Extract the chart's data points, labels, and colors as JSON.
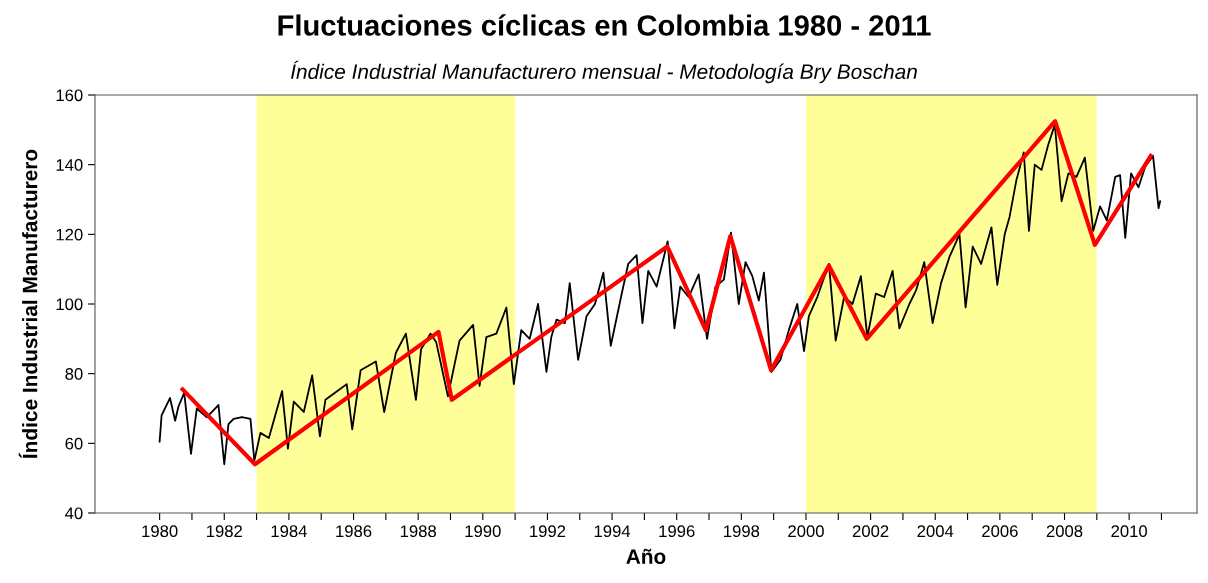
{
  "chart_data": {
    "type": "line",
    "title": "Fluctuaciones cíclicas en Colombia 1980 - 2011",
    "subtitle": "Índice Industrial Manufacturero mensual - Metodología Bry Boschan",
    "xlabel": "Año",
    "ylabel": "Índice Industrial Manufacturero",
    "xlim": [
      1978,
      2012.1
    ],
    "ylim": [
      40,
      160
    ],
    "xticks": [
      1980,
      {
        "value": 1981,
        "label": null
      },
      1982,
      {
        "value": 1983,
        "label": null
      },
      1984,
      {
        "value": 1985,
        "label": null
      },
      1986,
      {
        "value": 1987,
        "label": null
      },
      1988,
      {
        "value": 1989,
        "label": null
      },
      1990,
      {
        "value": 1991,
        "label": null
      },
      1992,
      {
        "value": 1993,
        "label": null
      },
      1994,
      {
        "value": 1995,
        "label": null
      },
      1996,
      {
        "value": 1997,
        "label": null
      },
      1998,
      {
        "value": 1999,
        "label": null
      },
      2000,
      {
        "value": 2001,
        "label": null
      },
      2002,
      {
        "value": 2003,
        "label": null
      },
      2004,
      {
        "value": 2005,
        "label": null
      },
      2006,
      {
        "value": 2007,
        "label": null
      },
      2008,
      {
        "value": 2009,
        "label": null
      },
      2010,
      {
        "value": 2011,
        "label": null
      }
    ],
    "yticks": [
      40,
      60,
      80,
      100,
      120,
      140,
      160
    ],
    "grid": false,
    "marker": "none",
    "bands": [
      {
        "axis": "x",
        "from": 1983.0,
        "to": 1991.0,
        "color": "#ffff99"
      },
      {
        "axis": "x",
        "from": 2000.0,
        "to": 2009.0,
        "color": "#ffff99"
      }
    ],
    "series": [
      {
        "color": "#000000",
        "line_style": "solid",
        "x": [
          1980.0,
          1980.06,
          1980.32,
          1980.48,
          1980.58,
          1980.76,
          1980.97,
          1981.15,
          1981.46,
          1981.82,
          1982.0,
          1982.13,
          1982.29,
          1982.55,
          1982.81,
          1982.93,
          1983.12,
          1983.38,
          1983.79,
          1983.97,
          1984.15,
          1984.46,
          1984.72,
          1984.96,
          1985.13,
          1985.5,
          1985.79,
          1985.96,
          1986.22,
          1986.69,
          1986.95,
          1987.31,
          1987.62,
          1987.93,
          1988.09,
          1988.38,
          1988.56,
          1988.92,
          1989.28,
          1989.7,
          1989.9,
          1990.11,
          1990.42,
          1990.73,
          1990.96,
          1991.19,
          1991.45,
          1991.71,
          1991.97,
          1992.12,
          1992.28,
          1992.54,
          1992.69,
          1992.95,
          1993.21,
          1993.47,
          1993.73,
          1993.96,
          1994.3,
          1994.5,
          1994.76,
          1994.94,
          1995.12,
          1995.38,
          1995.72,
          1995.93,
          1996.11,
          1996.37,
          1996.68,
          1996.94,
          1997.2,
          1997.46,
          1997.68,
          1997.92,
          1998.13,
          1998.34,
          1998.54,
          1998.7,
          1998.93,
          1999.21,
          1999.47,
          1999.73,
          1999.94,
          2000.09,
          2000.35,
          2000.71,
          2000.92,
          2001.18,
          2001.44,
          2001.7,
          2001.9,
          2002.16,
          2002.42,
          2002.68,
          2002.89,
          2003.2,
          2003.41,
          2003.66,
          2003.92,
          2004.18,
          2004.44,
          2004.75,
          2004.94,
          2005.16,
          2005.42,
          2005.74,
          2005.92,
          2006.15,
          2006.3,
          2006.51,
          2006.74,
          2006.9,
          2007.08,
          2007.29,
          2007.49,
          2007.7,
          2007.91,
          2008.12,
          2008.37,
          2008.63,
          2008.89,
          2009.1,
          2009.31,
          2009.57,
          2009.72,
          2009.88,
          2010.06,
          2010.29,
          2010.5,
          2010.74,
          2010.91,
          2010.96
        ],
        "values": [
          60.5,
          68,
          73,
          66.5,
          70.5,
          74.5,
          57,
          70,
          67.5,
          71,
          54,
          65.5,
          67,
          67.5,
          67,
          55,
          63,
          61.5,
          75,
          58.5,
          72,
          69,
          79.5,
          62,
          72.5,
          75,
          77,
          64,
          81,
          83.5,
          69,
          86,
          91.5,
          72.5,
          87,
          91.5,
          89,
          73.5,
          89.5,
          94,
          76.5,
          90.5,
          91.5,
          99,
          77,
          92.5,
          90,
          100,
          80.5,
          90.5,
          95.5,
          94.5,
          106,
          84,
          96.5,
          100,
          109,
          88,
          103,
          111.5,
          114,
          94.5,
          109.5,
          105,
          118,
          93,
          105,
          102,
          108.5,
          90,
          105,
          107,
          120.5,
          100,
          112,
          108,
          101,
          109,
          80.5,
          84,
          92.5,
          100,
          86.5,
          96.5,
          102,
          111.5,
          89.5,
          102,
          100,
          108,
          90.5,
          103,
          102,
          109.5,
          93,
          100,
          104,
          112,
          94.5,
          106,
          113.5,
          120,
          99,
          116.5,
          111.5,
          122,
          105.5,
          120,
          125,
          135.5,
          143.5,
          121,
          140,
          138.5,
          145.5,
          151.5,
          129.5,
          137.5,
          136.5,
          142,
          121,
          128,
          124,
          136.5,
          137,
          119,
          137.5,
          133.5,
          139.5,
          142.5,
          127.5,
          129.5
        ]
      },
      {
        "color": "#ff0000",
        "line_style": "solid",
        "x": [
          1980.71,
          1982.95,
          1988.63,
          1989.04,
          1995.71,
          1996.9,
          1997.66,
          1998.92,
          2000.71,
          2001.88,
          2007.71,
          2008.94,
          2010.67
        ],
        "values": [
          75.5,
          54,
          92,
          72.5,
          116.5,
          92.5,
          119.5,
          81,
          111,
          90,
          152.5,
          117,
          142.5
        ]
      }
    ]
  }
}
